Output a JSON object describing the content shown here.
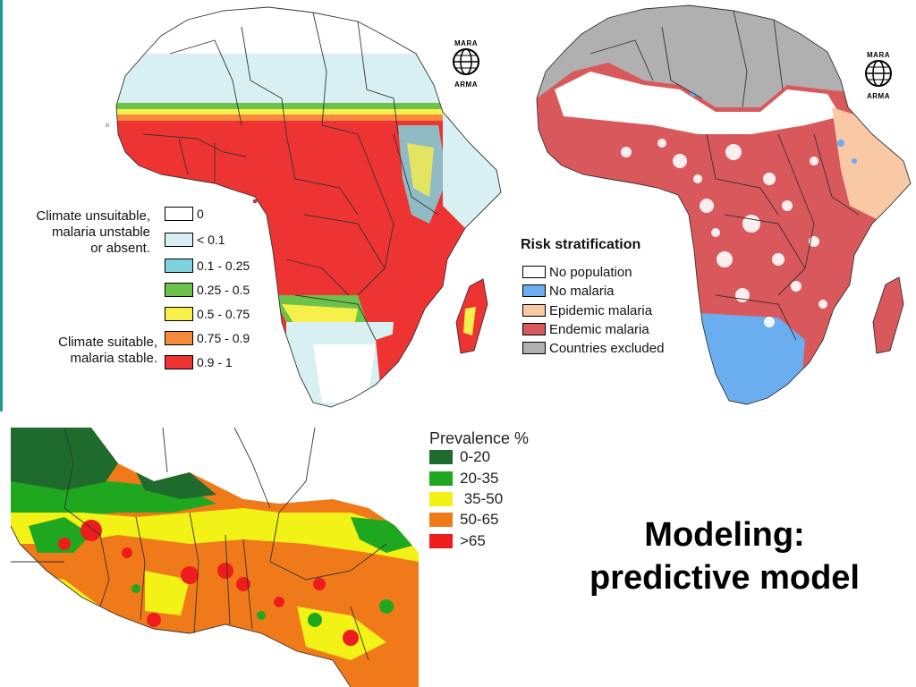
{
  "colors": {
    "red": "#ee3333",
    "orange": "#f58a3c",
    "yellow": "#f7f04a",
    "green": "#6cc24a",
    "cyan": "#7fd3de",
    "lightblue": "#d9f0f2",
    "white": "#ffffff",
    "endemic": "#d9585b",
    "epidemic": "#f8c9a4",
    "nomalaria": "#6aaef0",
    "excluded": "#b0b0b0",
    "prev_dkgreen": "#1f6b2d",
    "prev_green": "#1fa81f",
    "prev_yellow": "#f2f216",
    "prev_orange": "#f07a1a",
    "prev_red": "#ee1c1c"
  },
  "legend_suitability": {
    "desc_unsuitable": [
      "Climate unsuitable,",
      "malaria unstable",
      "or absent."
    ],
    "desc_suitable": [
      "Climate suitable,",
      "malaria stable."
    ],
    "items": [
      {
        "label": "0",
        "color": "#ffffff"
      },
      {
        "label": "<  0.1",
        "color": "#d9f0f2"
      },
      {
        "label": "0.1 - 0.25",
        "color": "#7fd3de"
      },
      {
        "label": "0.25 - 0.5",
        "color": "#6cc24a"
      },
      {
        "label": "0.5 - 0.75",
        "color": "#f7f04a"
      },
      {
        "label": "0.75 - 0.9",
        "color": "#f58a3c"
      },
      {
        "label": "0.9 - 1",
        "color": "#ee3333"
      }
    ]
  },
  "legend_risk": {
    "title": "Risk stratification",
    "items": [
      {
        "label": "No population",
        "color": "#ffffff"
      },
      {
        "label": "No malaria",
        "color": "#6aaef0"
      },
      {
        "label": "Epidemic malaria",
        "color": "#f8c9a4"
      },
      {
        "label": "Endemic malaria",
        "color": "#d9585b"
      },
      {
        "label": "Countries excluded",
        "color": "#b0b0b0"
      }
    ]
  },
  "legend_prevalence": {
    "title": "Prevalence %",
    "items": [
      {
        "label": "0-20",
        "color": "#1f6b2d"
      },
      {
        "label": "20-35",
        "color": "#1fa81f"
      },
      {
        "label": " 35-50",
        "color": "#f2f216"
      },
      {
        "label": "50-65",
        "color": "#f07a1a"
      },
      {
        "label": ">65",
        "color": "#ee1c1c"
      }
    ]
  },
  "logo": {
    "top": "MARA",
    "bottom": "ARMA"
  },
  "slide_title": {
    "line1": "Modeling:",
    "line2": "predictive model"
  }
}
